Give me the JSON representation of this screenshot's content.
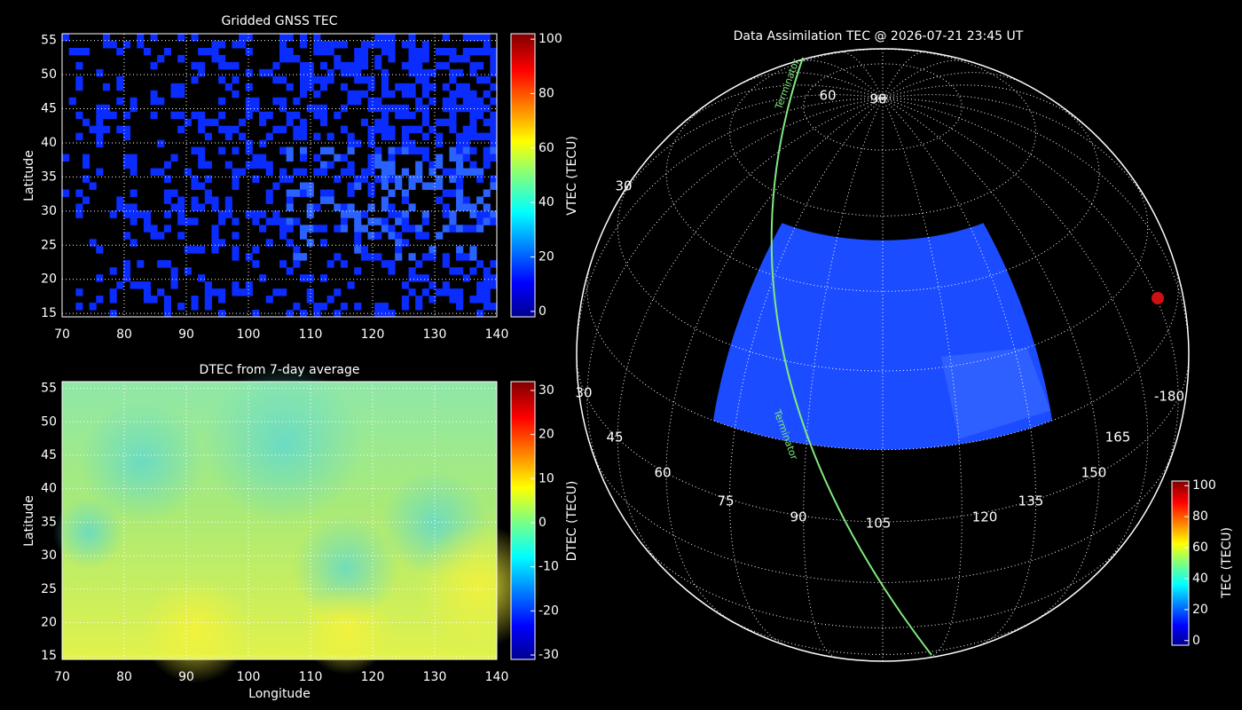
{
  "panels": [
    {
      "title": "Gridded GNSS TEC",
      "y_label": "Latitude",
      "xlim": [
        70,
        140
      ],
      "ylim": [
        14.5,
        56
      ],
      "xticks": [
        70,
        80,
        90,
        100,
        110,
        120,
        130,
        140
      ],
      "yticks": [
        15,
        20,
        25,
        30,
        35,
        40,
        45,
        50,
        55
      ],
      "colorbar": {
        "label": "VTEC (TECU)",
        "lim": [
          -2,
          102
        ],
        "ticks": [
          0,
          20,
          40,
          60,
          80,
          100
        ]
      }
    },
    {
      "title": "DTEC from 7-day average",
      "x_label": "Longitude",
      "y_label": "Latitude",
      "xlim": [
        70,
        140
      ],
      "ylim": [
        14.5,
        56
      ],
      "xticks": [
        70,
        80,
        90,
        100,
        110,
        120,
        130,
        140
      ],
      "yticks": [
        15,
        20,
        25,
        30,
        35,
        40,
        45,
        50,
        55
      ],
      "colorbar": {
        "label": "DTEC (TECU)",
        "lim": [
          -31,
          32
        ],
        "ticks": [
          -30,
          -20,
          -10,
          0,
          10,
          20,
          30
        ]
      }
    },
    {
      "title": "Data Assimilation TEC @ 2026-07-21 23:45 UT",
      "globe_labels": [
        "90",
        "60",
        "30",
        "30",
        "45",
        "60",
        "75",
        "90",
        "105",
        "120",
        "135",
        "150",
        "165",
        "-180"
      ],
      "terminator_label": "Terminator",
      "colorbar": {
        "label": "TEC (TECU)",
        "lim": [
          -3,
          103
        ],
        "ticks": [
          0,
          20,
          40,
          60,
          80,
          100
        ]
      }
    }
  ]
}
